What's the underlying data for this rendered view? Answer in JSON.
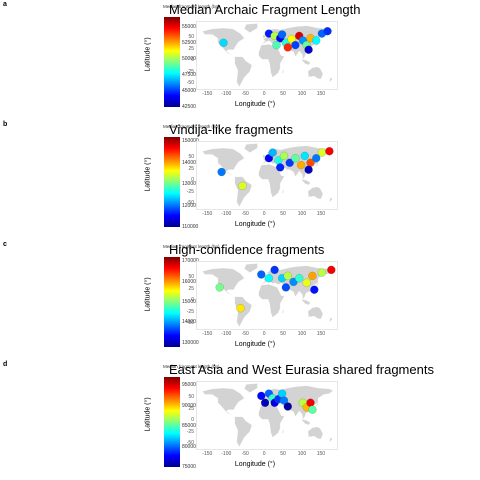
{
  "axis": {
    "xlabel": "Longitude (°)",
    "ylabel": "Latitude (°)",
    "xticks": [
      "-150",
      "-100",
      "-50",
      "0",
      "50",
      "100",
      "150"
    ],
    "yticks": [
      "50",
      "25",
      "0",
      "-25",
      "-50"
    ],
    "xlim": [
      -180,
      190
    ],
    "ylim": [
      -60,
      85
    ]
  },
  "legend_title": "Median fragment length (bp)",
  "colors": {
    "land": "#d3d3d3",
    "border": "#e6e6e6",
    "point_stroke": "#555555"
  },
  "chart_data": [
    {
      "letter": "a",
      "title": "Median Archaic Fragment Length",
      "type": "scatter",
      "legend_ticks": [
        "55000",
        "52500",
        "50000",
        "47500",
        "45000",
        "42500"
      ],
      "color_range": [
        42500,
        56500
      ],
      "points": [
        {
          "lon": -110,
          "lat": 40,
          "value": 49000
        },
        {
          "lon": 10,
          "lat": 60,
          "value": 45000
        },
        {
          "lon": 25,
          "lat": 55,
          "value": 52000
        },
        {
          "lon": 40,
          "lat": 50,
          "value": 44000
        },
        {
          "lon": 45,
          "lat": 58,
          "value": 47000
        },
        {
          "lon": 55,
          "lat": 40,
          "value": 50000
        },
        {
          "lon": 70,
          "lat": 48,
          "value": 53000
        },
        {
          "lon": 80,
          "lat": 35,
          "value": 46000
        },
        {
          "lon": 90,
          "lat": 55,
          "value": 56000
        },
        {
          "lon": 100,
          "lat": 45,
          "value": 48000
        },
        {
          "lon": 110,
          "lat": 35,
          "value": 51000
        },
        {
          "lon": 115,
          "lat": 25,
          "value": 43500
        },
        {
          "lon": 120,
          "lat": 50,
          "value": 54000
        },
        {
          "lon": 135,
          "lat": 45,
          "value": 49500
        },
        {
          "lon": 150,
          "lat": 60,
          "value": 47000
        },
        {
          "lon": 165,
          "lat": 65,
          "value": 45500
        },
        {
          "lon": 30,
          "lat": 35,
          "value": 50500
        },
        {
          "lon": 60,
          "lat": 30,
          "value": 55500
        }
      ]
    },
    {
      "letter": "b",
      "title": "Vindija-like fragments",
      "type": "scatter",
      "legend_ticks": [
        "150000",
        "140000",
        "130000",
        "120000",
        "110000"
      ],
      "color_range": [
        110000,
        152000
      ],
      "points": [
        {
          "lon": -115,
          "lat": 20,
          "value": 125000
        },
        {
          "lon": -60,
          "lat": -10,
          "value": 140000
        },
        {
          "lon": 10,
          "lat": 50,
          "value": 115000
        },
        {
          "lon": 20,
          "lat": 62,
          "value": 128000
        },
        {
          "lon": 35,
          "lat": 45,
          "value": 132000
        },
        {
          "lon": 50,
          "lat": 55,
          "value": 138000
        },
        {
          "lon": 65,
          "lat": 40,
          "value": 120000
        },
        {
          "lon": 80,
          "lat": 50,
          "value": 135000
        },
        {
          "lon": 95,
          "lat": 35,
          "value": 145000
        },
        {
          "lon": 105,
          "lat": 55,
          "value": 130000
        },
        {
          "lon": 120,
          "lat": 40,
          "value": 148000
        },
        {
          "lon": 135,
          "lat": 50,
          "value": 125000
        },
        {
          "lon": 150,
          "lat": 62,
          "value": 140000
        },
        {
          "lon": 170,
          "lat": 65,
          "value": 150000
        },
        {
          "lon": 115,
          "lat": 25,
          "value": 112000
        },
        {
          "lon": 40,
          "lat": 30,
          "value": 118000
        }
      ]
    },
    {
      "letter": "c",
      "title": "High-confidence fragments",
      "type": "scatter",
      "legend_ticks": [
        "170000",
        "160000",
        "150000",
        "140000",
        "130000"
      ],
      "color_range": [
        128000,
        172000
      ],
      "points": [
        {
          "lon": -120,
          "lat": 30,
          "value": 155000
        },
        {
          "lon": -65,
          "lat": -15,
          "value": 162000
        },
        {
          "lon": -10,
          "lat": 58,
          "value": 142000
        },
        {
          "lon": 10,
          "lat": 50,
          "value": 150000
        },
        {
          "lon": 25,
          "lat": 68,
          "value": 138000
        },
        {
          "lon": 45,
          "lat": 50,
          "value": 148000
        },
        {
          "lon": 60,
          "lat": 55,
          "value": 158000
        },
        {
          "lon": 75,
          "lat": 42,
          "value": 145000
        },
        {
          "lon": 90,
          "lat": 50,
          "value": 152000
        },
        {
          "lon": 110,
          "lat": 40,
          "value": 160000
        },
        {
          "lon": 125,
          "lat": 55,
          "value": 165000
        },
        {
          "lon": 150,
          "lat": 62,
          "value": 158000
        },
        {
          "lon": 175,
          "lat": 68,
          "value": 170000
        },
        {
          "lon": 130,
          "lat": 25,
          "value": 135000
        },
        {
          "lon": 55,
          "lat": 30,
          "value": 140000
        }
      ]
    },
    {
      "letter": "d",
      "title": "East Asia and West Eurasia shared fragments",
      "type": "scatter",
      "legend_ticks": [
        "95000",
        "90000",
        "85000",
        "80000",
        "75000"
      ],
      "color_range": [
        75000,
        97000
      ],
      "points": [
        {
          "lon": -10,
          "lat": 55,
          "value": 78000
        },
        {
          "lon": 0,
          "lat": 40,
          "value": 76000
        },
        {
          "lon": 10,
          "lat": 60,
          "value": 82000
        },
        {
          "lon": 20,
          "lat": 50,
          "value": 87000
        },
        {
          "lon": 25,
          "lat": 40,
          "value": 77000
        },
        {
          "lon": 35,
          "lat": 48,
          "value": 80000
        },
        {
          "lon": 45,
          "lat": 60,
          "value": 85000
        },
        {
          "lon": 50,
          "lat": 45,
          "value": 83000
        },
        {
          "lon": 60,
          "lat": 32,
          "value": 75500
        },
        {
          "lon": 100,
          "lat": 40,
          "value": 90000
        },
        {
          "lon": 110,
          "lat": 30,
          "value": 93000
        },
        {
          "lon": 120,
          "lat": 40,
          "value": 96000
        },
        {
          "lon": 125,
          "lat": 25,
          "value": 88000
        }
      ]
    }
  ]
}
